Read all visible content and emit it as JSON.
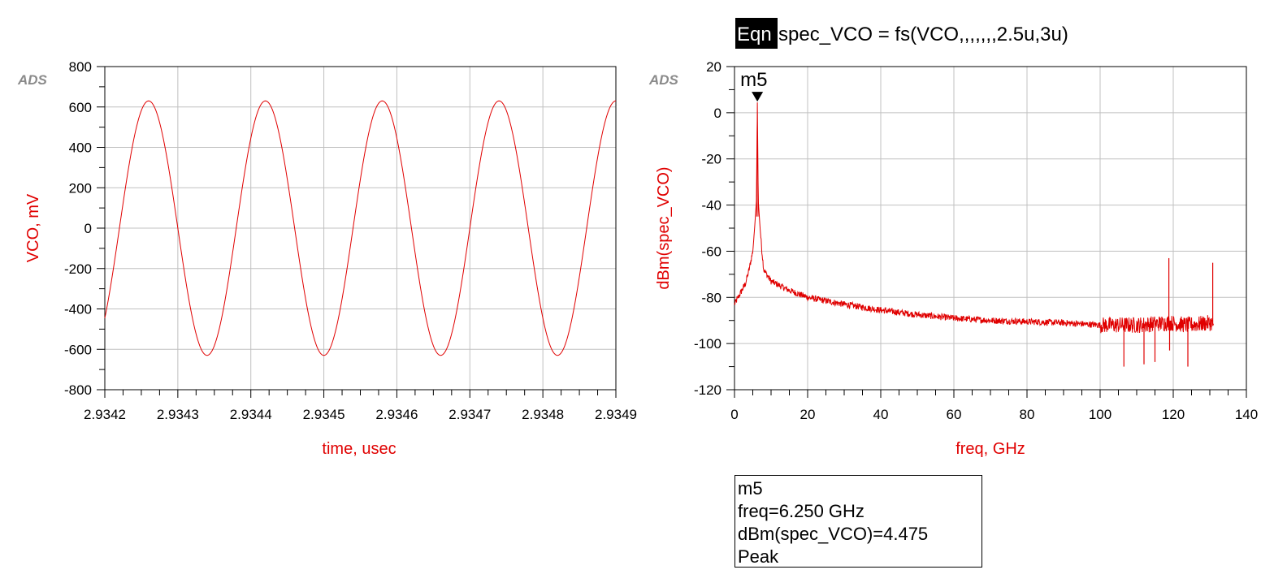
{
  "equation": {
    "tag": "Eqn",
    "text": "spec_VCO = fs(VCO,,,,,,,2.5u,3u)"
  },
  "watermark": "ADS",
  "marker_readout": {
    "name": "m5",
    "freq": "freq=6.250 GHz",
    "value": "dBm(spec_VCO)=4.475",
    "mode": "Peak"
  },
  "chart_data": [
    {
      "type": "line",
      "xlabel": "time, usec",
      "ylabel": "VCO, mV",
      "xlim": [
        2.9342,
        2.9349
      ],
      "ylim": [
        -800,
        800
      ],
      "x_ticks": [
        "2.9342",
        "2.9343",
        "2.9344",
        "2.9345",
        "2.9346",
        "2.9347",
        "2.9348",
        "2.9349"
      ],
      "y_ticks": [
        "800",
        "600",
        "400",
        "200",
        "0",
        "-200",
        "-400",
        "-600",
        "-800"
      ],
      "grid": true,
      "color": "#e00000",
      "series": [
        {
          "waveform": "sine",
          "amplitude": 630,
          "frequency_GHz": 6.25,
          "peak_times_usec": [
            2.93426,
            2.93442,
            2.93458,
            2.93474
          ],
          "trough_times_usec": [
            2.93434,
            2.9345,
            2.93466,
            2.93482
          ],
          "start_value": -500,
          "end_value": 620
        }
      ]
    },
    {
      "type": "line",
      "xlabel": "freq, GHz",
      "ylabel": "dBm(spec_VCO)",
      "xlim": [
        0,
        140
      ],
      "ylim": [
        -120,
        20
      ],
      "x_ticks": [
        "0",
        "20",
        "40",
        "60",
        "80",
        "100",
        "120",
        "140"
      ],
      "y_ticks": [
        "20",
        "0",
        "-20",
        "-40",
        "-60",
        "-80",
        "-100",
        "-120"
      ],
      "grid": true,
      "color": "#e00000",
      "series": [
        {
          "x": [
            0,
            1,
            2,
            3,
            4,
            5,
            5.5,
            6,
            6.25,
            6.5,
            7,
            7.5,
            8,
            10,
            15,
            20,
            30,
            40,
            50,
            60,
            70,
            80,
            90,
            100,
            106,
            110,
            118.8,
            124,
            130.5,
            131
          ],
          "y": [
            -83,
            -80,
            -77,
            -74,
            -68,
            -60,
            -50,
            -38,
            4.475,
            -38,
            -50,
            -60,
            -68,
            -73,
            -77,
            -80,
            -83,
            -85.5,
            -87.5,
            -89,
            -90,
            -90.5,
            -91,
            -92,
            -92,
            -92,
            -91,
            -92,
            -91,
            -92
          ]
        }
      ],
      "spurs": [
        {
          "x": 106.5,
          "y": -110
        },
        {
          "x": 112,
          "y": -109
        },
        {
          "x": 115,
          "y": -108
        },
        {
          "x": 118.8,
          "y": -63
        },
        {
          "x": 119,
          "y": -103
        },
        {
          "x": 124,
          "y": -110
        },
        {
          "x": 130.8,
          "y": -65
        }
      ],
      "markers": [
        {
          "name": "m5",
          "x": 6.25,
          "y": 4.475
        }
      ]
    }
  ]
}
